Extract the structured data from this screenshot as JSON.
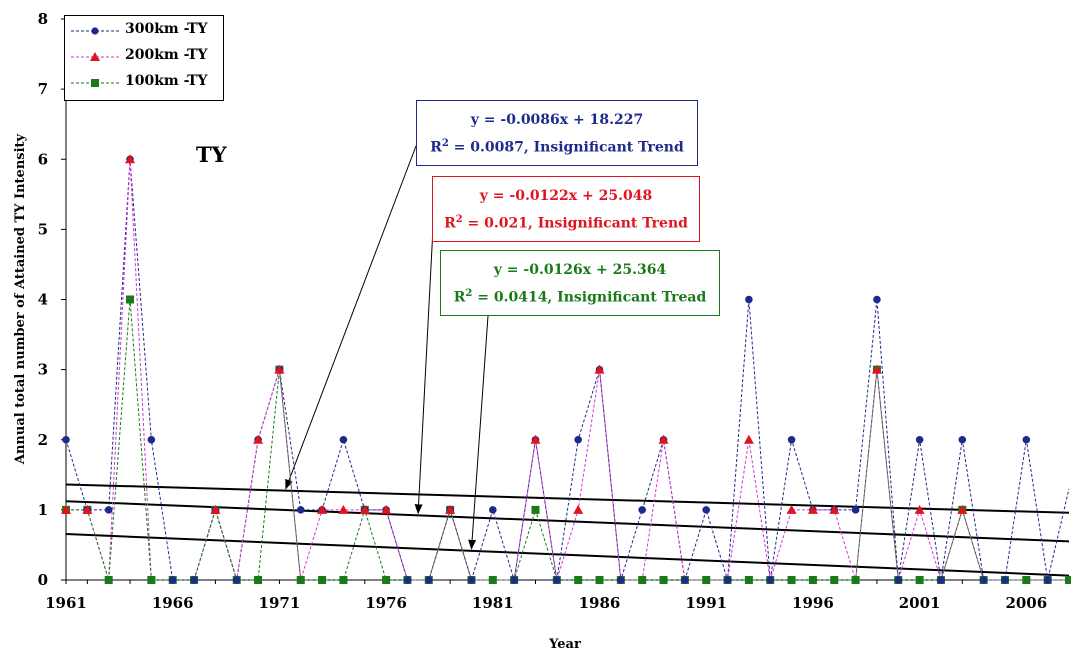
{
  "chart_data": {
    "type": "line",
    "title": "",
    "xlabel": "Year",
    "ylabel": "Annual total number of Attained TY Intensity",
    "xlim": [
      1961,
      2008
    ],
    "ylim": [
      0,
      8
    ],
    "xticks": [
      1961,
      1966,
      1971,
      1976,
      1981,
      1986,
      1991,
      1996,
      2001,
      2006
    ],
    "yticks": [
      0,
      1,
      2,
      3,
      4,
      5,
      6,
      7,
      8
    ],
    "grid": false,
    "legend_position": "top-left",
    "x": [
      1961,
      1962,
      1963,
      1964,
      1965,
      1966,
      1967,
      1968,
      1969,
      1970,
      1971,
      1972,
      1973,
      1974,
      1975,
      1976,
      1977,
      1978,
      1979,
      1980,
      1981,
      1982,
      1983,
      1984,
      1985,
      1986,
      1987,
      1988,
      1989,
      1990,
      1991,
      1992,
      1993,
      1994,
      1995,
      1996,
      1997,
      1998,
      1999,
      2000,
      2001,
      2002,
      2003,
      2004,
      2005,
      2006,
      2007,
      2008
    ],
    "series": [
      {
        "name": "300km -TY",
        "color": "#1e2a8a",
        "marker": "circle",
        "values": [
          2,
          1,
          1,
          6,
          2,
          0,
          0,
          1,
          0,
          2,
          3,
          1,
          1,
          2,
          1,
          1,
          0,
          0,
          1,
          0,
          1,
          0,
          2,
          0,
          2,
          3,
          0,
          1,
          2,
          0,
          1,
          0,
          4,
          0,
          2,
          1,
          1,
          1,
          4,
          0,
          2,
          0,
          2,
          0,
          0,
          2,
          0,
          1.3
        ]
      },
      {
        "name": "200km -TY",
        "color": "#e0141e",
        "marker": "triangle",
        "values": [
          1,
          1,
          0,
          6,
          0,
          0,
          0,
          1,
          0,
          2,
          3,
          0,
          1,
          1,
          1,
          1,
          0,
          0,
          1,
          0,
          0,
          0,
          2,
          0,
          1,
          3,
          0,
          0,
          2,
          0,
          0,
          0,
          2,
          0,
          1,
          1,
          1,
          0,
          3,
          0,
          1,
          0,
          1,
          0,
          0,
          0,
          0,
          0
        ]
      },
      {
        "name": "100km -TY",
        "color": "#1a7a1a",
        "marker": "square",
        "values": [
          1,
          1,
          0,
          4,
          0,
          0,
          0,
          1,
          0,
          0,
          3,
          0,
          0,
          0,
          1,
          0,
          0,
          0,
          1,
          0,
          0,
          0,
          1,
          0,
          0,
          0,
          0,
          0,
          0,
          0,
          0,
          0,
          0,
          0,
          0,
          0,
          0,
          0,
          3,
          0,
          0,
          0,
          1,
          0,
          0,
          0,
          0,
          0
        ]
      }
    ],
    "trendlines": [
      {
        "slope": -0.0086,
        "intercept": 18.227
      },
      {
        "slope": -0.0122,
        "intercept": 25.048
      },
      {
        "slope": -0.0126,
        "intercept": 25.364
      }
    ],
    "annotations": [
      {
        "equation": "y = -0.0086x + 18.227",
        "r2_prefix": "R",
        "r2_sup": "2",
        "r2_text": " = 0.0087, Insignificant Trend",
        "color": "#1e2a8a"
      },
      {
        "equation": "y = -0.0122x + 25.048",
        "r2_prefix": "R",
        "r2_sup": "2",
        "r2_text": " = 0.021, Insignificant Trend",
        "color": "#e0141e"
      },
      {
        "equation": "y = -0.0126x + 25.364",
        "r2_prefix": "R",
        "r2_sup": "2",
        "r2_text": " = 0.0414, Insignificant Tread",
        "color": "#1a7a1a"
      }
    ],
    "inset_label": "TY"
  }
}
